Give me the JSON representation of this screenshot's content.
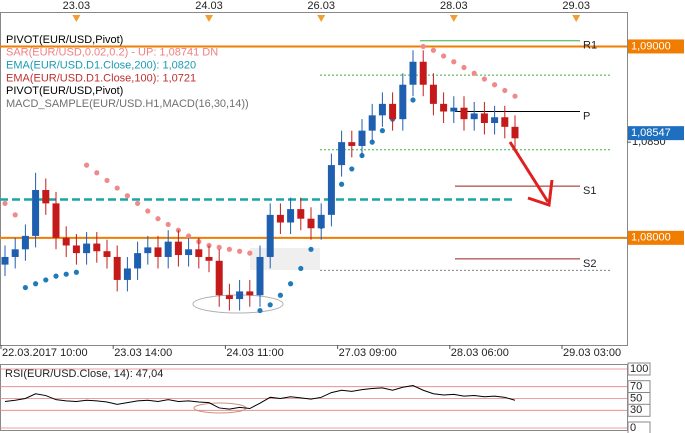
{
  "chart_data": {
    "type": "candlestick",
    "legend": [
      {
        "text": "PIVOT(EUR/USD,Pivot)",
        "color": "#000000"
      },
      {
        "text": "SAR(EUR/USD,0.02,0.2) -  UP: 1,08741  DN",
        "color": "#f08080"
      },
      {
        "text": "EMA(EUR/USD.D1.Close,200): 1,0820",
        "color": "#1a9bb0"
      },
      {
        "text": "EMA(EUR/USD.D1.Close,100): 1,0721",
        "color": "#c03030"
      },
      {
        "text": "PIVOT(EUR/USD,Pivot)",
        "color": "#000000"
      },
      {
        "text": "MACD_SAMPLE(EUR/USD.H1,MACD(16,30,14))",
        "color": "#707070"
      }
    ],
    "categories": [
      "22.03.2017 10:00",
      null,
      null,
      null,
      null,
      null,
      null,
      null,
      null,
      null,
      null,
      "23.03 14:00",
      null,
      null,
      null,
      null,
      null,
      null,
      null,
      null,
      null,
      null,
      "24.03 11:00",
      null,
      null,
      null,
      null,
      null,
      null,
      null,
      null,
      null,
      null,
      "27.03 09:00",
      null,
      null,
      null,
      null,
      null,
      null,
      null,
      null,
      null,
      null,
      "28.03 06:00",
      null,
      null,
      null,
      null,
      null,
      null,
      null,
      null,
      null,
      null,
      "29.03 03:00",
      null,
      null,
      null,
      null,
      null,
      null
    ],
    "day_markers": [
      {
        "label": "23.03",
        "index": 7
      },
      {
        "label": "24.03",
        "index": 20
      },
      {
        "label": "26.03",
        "index": 31
      },
      {
        "label": "28.03",
        "index": 44
      },
      {
        "label": "29.03",
        "index": 56
      }
    ],
    "up_color": "#1f5fb0",
    "down_color": "#c41a1a",
    "open": [
      1.0786,
      1.079,
      1.0794,
      1.0801,
      1.0825,
      1.0818,
      1.08,
      1.0796,
      1.0792,
      1.0797,
      1.0793,
      1.079,
      1.0778,
      1.0784,
      1.0792,
      1.0795,
      1.079,
      1.0798,
      1.0791,
      1.0794,
      1.079,
      1.0788,
      1.077,
      1.0768,
      1.0772,
      1.077,
      1.079,
      1.0812,
      1.0808,
      1.0815,
      1.081,
      1.0805,
      1.0812,
      1.0838,
      1.085,
      1.0848,
      1.0856,
      1.0864,
      1.087,
      1.0862,
      1.088,
      1.0892,
      1.088,
      1.087,
      1.0866,
      1.0868,
      1.0862,
      1.0865,
      1.086,
      1.0863,
      1.0858,
      null,
      null,
      null,
      null,
      null,
      null,
      null,
      null,
      null,
      null,
      null
    ],
    "high": [
      1.0796,
      1.08,
      1.0807,
      1.0834,
      1.0831,
      1.0824,
      1.0806,
      1.0802,
      1.0803,
      1.0803,
      1.0799,
      1.0796,
      1.079,
      1.0798,
      1.0801,
      1.0801,
      1.0804,
      1.0804,
      1.08,
      1.08,
      1.0796,
      1.0794,
      1.0776,
      1.0778,
      1.0778,
      1.0796,
      1.0818,
      1.0818,
      1.0821,
      1.0821,
      1.0816,
      1.0818,
      1.0844,
      1.0856,
      1.0856,
      1.0862,
      1.087,
      1.0876,
      1.0876,
      1.0886,
      1.0898,
      1.0898,
      1.0886,
      1.0876,
      1.0874,
      1.0874,
      1.0871,
      1.0871,
      1.0869,
      1.0869,
      1.0864,
      null,
      null,
      null,
      null,
      null,
      null,
      null,
      null,
      null,
      null,
      null
    ],
    "low": [
      1.078,
      1.0784,
      1.0788,
      1.0795,
      1.0812,
      1.0794,
      1.079,
      1.0786,
      1.0786,
      1.0787,
      1.0784,
      1.0772,
      1.0772,
      1.0778,
      1.0786,
      1.0784,
      1.0784,
      1.0785,
      1.0785,
      1.0784,
      1.0782,
      1.0764,
      1.0762,
      1.0762,
      1.0764,
      1.0764,
      1.0784,
      1.0802,
      1.0802,
      1.0804,
      1.0799,
      1.0799,
      1.0806,
      1.0832,
      1.0842,
      1.0842,
      1.085,
      1.0858,
      1.0856,
      1.0856,
      1.0874,
      1.0874,
      1.0864,
      1.086,
      1.086,
      1.0856,
      1.0856,
      1.0854,
      1.0854,
      1.0852,
      1.0846,
      null,
      null,
      null,
      null,
      null,
      null,
      null,
      null,
      null,
      null,
      null
    ],
    "close": [
      1.079,
      1.0794,
      1.0801,
      1.0825,
      1.0818,
      1.08,
      1.0796,
      1.0792,
      1.0797,
      1.0793,
      1.079,
      1.0778,
      1.0784,
      1.0792,
      1.0795,
      1.079,
      1.0798,
      1.0791,
      1.0794,
      1.079,
      1.0788,
      1.077,
      1.0768,
      1.0772,
      1.077,
      1.079,
      1.0812,
      1.0808,
      1.0815,
      1.081,
      1.0805,
      1.0812,
      1.0838,
      1.085,
      1.0848,
      1.0856,
      1.0864,
      1.087,
      1.0862,
      1.088,
      1.0892,
      1.088,
      1.087,
      1.0866,
      1.0868,
      1.0862,
      1.0865,
      1.086,
      1.0863,
      1.0858,
      1.0852,
      null,
      null,
      null,
      null,
      null,
      null,
      null,
      null,
      null,
      null,
      null
    ],
    "sar": [
      1.0818,
      1.0812,
      1.0774,
      1.0776,
      1.0778,
      1.078,
      1.0781,
      1.0782,
      1.0838,
      1.0834,
      1.083,
      1.0826,
      1.0822,
      1.0818,
      1.0814,
      1.081,
      1.0807,
      1.0804,
      1.0801,
      1.0798,
      1.0796,
      1.0795,
      1.0794,
      1.0793,
      1.0792,
      1.0762,
      1.0765,
      1.077,
      1.0776,
      1.0784,
      1.0794,
      1.0806,
      1.0818,
      1.0828,
      1.0836,
      1.0843,
      1.085,
      1.0856,
      1.0862,
      1.0868,
      1.0872,
      1.09,
      1.0898,
      1.0895,
      1.0892,
      1.0889,
      1.0886,
      1.0883,
      1.088,
      1.0877,
      1.0874,
      null,
      null,
      null,
      null,
      null,
      null,
      null,
      null,
      null,
      null,
      null
    ],
    "sar_up_color": "#1e7ab8",
    "sar_down_color": "#f08a8a",
    "ylim": [
      1.0744,
      1.0918
    ],
    "yticks": [
      {
        "value": 1.085,
        "label": "1,0850"
      }
    ],
    "levels": [
      {
        "value": 1.09,
        "label": "1,09000",
        "color": "#f07c00"
      },
      {
        "value": 1.08,
        "label": "1,08000",
        "color": "#f07c00"
      }
    ],
    "current_price": {
      "value": 1.08547,
      "label": "1,08547",
      "color": "#1e6fc0"
    },
    "ema200": {
      "value": 1.082,
      "color": "#1aa6a6"
    },
    "pivot_levels": [
      {
        "label": "R1",
        "value": 1.0903,
        "color": "#3cb043"
      },
      {
        "label": "P",
        "value": 1.0866,
        "color": "#000000"
      },
      {
        "label": "S1",
        "value": 1.0827,
        "color": "#9b1c1c"
      },
      {
        "label": "S2",
        "value": 1.0789,
        "color": "#9b1c1c"
      }
    ],
    "mid_levels": [
      {
        "value": 1.0885,
        "color": "#3cb043"
      },
      {
        "value": 1.0846,
        "color": "#3cb043"
      },
      {
        "value": 1.0783,
        "color": "#808080"
      }
    ],
    "rsi": {
      "label": "RSI(EUR/USD.Close, 14): 47,04",
      "color": "#000000",
      "values": [
        45,
        47,
        50,
        58,
        55,
        48,
        46,
        45,
        47,
        46,
        44,
        40,
        43,
        46,
        47,
        45,
        48,
        45,
        46,
        44,
        43,
        34,
        32,
        35,
        33,
        42,
        52,
        50,
        53,
        51,
        49,
        52,
        60,
        64,
        62,
        65,
        67,
        68,
        64,
        69,
        72,
        64,
        58,
        56,
        57,
        54,
        55,
        53,
        54,
        52,
        47,
        null,
        null,
        null,
        null,
        null,
        null,
        null,
        null,
        null,
        null,
        null
      ],
      "ylim": [
        0,
        100
      ],
      "yticks": [
        100,
        70,
        50,
        30,
        0
      ]
    }
  }
}
